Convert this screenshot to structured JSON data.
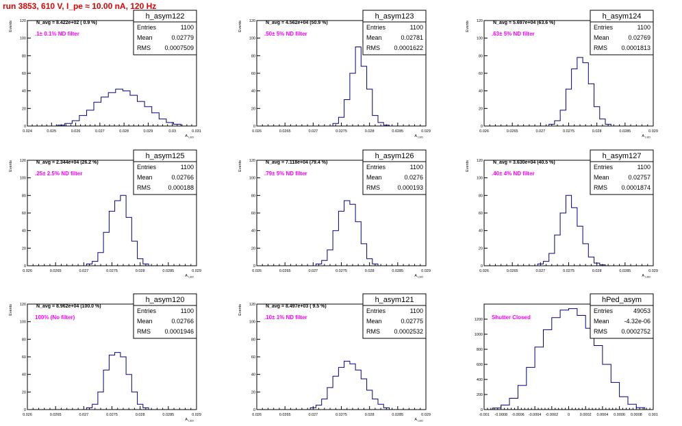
{
  "header": {
    "run_label": "run 3853,   610 V, I_pe ≈ 10.00 nA, 120 Hz",
    "title_color": "#e00000"
  },
  "colors": {
    "histogram": "#00007f",
    "annotation": "#ff00ff",
    "axes": "#000000"
  },
  "chart_data": [
    {
      "type": "histogram",
      "name": "h_asym122",
      "ylabel": "Events",
      "xlabel": "A_LED",
      "navg_text": "N_avg = 8.422e+02 ( 0.9 %)",
      "filter_text": ".1± 0.1% ND filter",
      "stats": {
        "entries": "1100",
        "mean": "0.02779",
        "rms": "0.0007509"
      },
      "xlim": [
        0.024,
        0.031
      ],
      "ylim": [
        0,
        120
      ],
      "xticks": [
        "0.024",
        "0.025",
        "0.026",
        "0.027",
        "0.028",
        "0.029",
        "0.03",
        "0.031"
      ],
      "yticks": [
        "0",
        "20",
        "40",
        "60",
        "80",
        "100",
        "120"
      ],
      "x": [
        0.0254,
        0.0257,
        0.026,
        0.0263,
        0.0266,
        0.0269,
        0.0272,
        0.0275,
        0.0278,
        0.0281,
        0.0284,
        0.0287,
        0.029,
        0.0293,
        0.0296,
        0.0299,
        0.0302
      ],
      "values": [
        1,
        3,
        6,
        12,
        18,
        27,
        33,
        38,
        42,
        40,
        35,
        28,
        22,
        15,
        8,
        4,
        2
      ]
    },
    {
      "type": "histogram",
      "name": "h_asym123",
      "ylabel": "Events",
      "xlabel": "A_LED",
      "navg_text": "N_avg = 4.562e+04 (50.9 %)",
      "filter_text": ".50± 5% ND filter",
      "stats": {
        "entries": "1100",
        "mean": "0.02781",
        "rms": "0.0001622"
      },
      "xlim": [
        0.026,
        0.029
      ],
      "ylim": [
        0,
        120
      ],
      "xticks": [
        "0.026",
        "0.0265",
        "0.027",
        "0.0275",
        "0.028",
        "0.0285",
        "0.029"
      ],
      "yticks": [
        "0",
        "20",
        "40",
        "60",
        "80",
        "100",
        "120"
      ],
      "x": [
        0.0274,
        0.0275,
        0.0276,
        0.0277,
        0.0278,
        0.0279,
        0.028,
        0.0281,
        0.0282,
        0.0283
      ],
      "values": [
        3,
        10,
        30,
        60,
        90,
        68,
        42,
        12,
        4,
        1
      ]
    },
    {
      "type": "histogram",
      "name": "h_asym124",
      "ylabel": "Events",
      "xlabel": "A_LED",
      "navg_text": "N_avg = 5.697e+04 (63.6 %)",
      "filter_text": ".63± 5% ND filter",
      "stats": {
        "entries": "1100",
        "mean": "0.02769",
        "rms": "0.0001813"
      },
      "xlim": [
        0.026,
        0.029
      ],
      "ylim": [
        0,
        120
      ],
      "xticks": [
        "0.026",
        "0.0265",
        "0.027",
        "0.0275",
        "0.028",
        "0.0285",
        "0.029"
      ],
      "yticks": [
        "0",
        "20",
        "40",
        "60",
        "80",
        "100",
        "120"
      ],
      "x": [
        0.0272,
        0.0273,
        0.0274,
        0.0275,
        0.0276,
        0.0277,
        0.0278,
        0.0279,
        0.028,
        0.0281,
        0.0282
      ],
      "values": [
        2,
        6,
        18,
        42,
        65,
        78,
        72,
        48,
        22,
        8,
        2
      ]
    },
    {
      "type": "histogram",
      "name": "h_asym125",
      "ylabel": "Events",
      "xlabel": "A_LED",
      "navg_text": "N_avg = 2.344e+04 (26.2 %)",
      "filter_text": ".25± 2.5% ND filter",
      "stats": {
        "entries": "1100",
        "mean": "0.02766",
        "rms": "0.000188"
      },
      "xlim": [
        0.026,
        0.029
      ],
      "ylim": [
        0,
        120
      ],
      "xticks": [
        "0.026",
        "0.0265",
        "0.027",
        "0.0275",
        "0.028",
        "0.0285",
        "0.029"
      ],
      "yticks": [
        "0",
        "20",
        "40",
        "60",
        "80",
        "100",
        "120"
      ],
      "x": [
        0.0271,
        0.0272,
        0.0273,
        0.0274,
        0.0275,
        0.0276,
        0.0277,
        0.0278,
        0.0279,
        0.028,
        0.0281
      ],
      "values": [
        2,
        5,
        15,
        38,
        62,
        74,
        80,
        55,
        28,
        8,
        2
      ]
    },
    {
      "type": "histogram",
      "name": "h_asym126",
      "ylabel": "Events",
      "xlabel": "A_LED",
      "navg_text": "N_avg = 7.118e+04 (79.4 %)",
      "filter_text": ".79± 5% ND filter",
      "stats": {
        "entries": "1100",
        "mean": "0.0276",
        "rms": "0.000193"
      },
      "xlim": [
        0.026,
        0.029
      ],
      "ylim": [
        0,
        120
      ],
      "xticks": [
        "0.026",
        "0.0265",
        "0.027",
        "0.0275",
        "0.028",
        "0.0285",
        "0.029"
      ],
      "yticks": [
        "0",
        "20",
        "40",
        "60",
        "80",
        "100",
        "120"
      ],
      "x": [
        0.0271,
        0.0272,
        0.0273,
        0.0274,
        0.0275,
        0.0276,
        0.0277,
        0.0278,
        0.0279,
        0.028,
        0.0281
      ],
      "values": [
        2,
        6,
        18,
        40,
        62,
        74,
        70,
        50,
        25,
        8,
        2
      ]
    },
    {
      "type": "histogram",
      "name": "h_asym127",
      "ylabel": "Events",
      "xlabel": "A_LED",
      "navg_text": "N_avg = 3.630e+04 (40.5 %)",
      "filter_text": ".40± 4% ND filter",
      "stats": {
        "entries": "1100",
        "mean": "0.02757",
        "rms": "0.0001874"
      },
      "xlim": [
        0.026,
        0.029
      ],
      "ylim": [
        0,
        120
      ],
      "xticks": [
        "0.026",
        "0.0265",
        "0.027",
        "0.0275",
        "0.028",
        "0.0285",
        "0.029"
      ],
      "yticks": [
        "0",
        "20",
        "40",
        "60",
        "80",
        "100",
        "120"
      ],
      "x": [
        0.027,
        0.0271,
        0.0272,
        0.0273,
        0.0274,
        0.0275,
        0.0276,
        0.0277,
        0.0278,
        0.0279,
        0.028,
        0.0281
      ],
      "values": [
        2,
        5,
        14,
        35,
        60,
        80,
        66,
        45,
        25,
        10,
        3,
        1
      ]
    },
    {
      "type": "histogram",
      "name": "h_asym120",
      "ylabel": "Events",
      "xlabel": "A_LED",
      "navg_text": "N_avg = 8.962e+04 (100.0 %)",
      "filter_text": "100% (No filter)",
      "stats": {
        "entries": "1100",
        "mean": "0.02766",
        "rms": "0.0001946"
      },
      "xlim": [
        0.026,
        0.029
      ],
      "ylim": [
        0,
        120
      ],
      "xticks": [
        "0.026",
        "0.0265",
        "0.027",
        "0.0275",
        "0.028",
        "0.0285",
        "0.029"
      ],
      "yticks": [
        "0",
        "20",
        "40",
        "60",
        "80",
        "100",
        "120"
      ],
      "x": [
        0.0271,
        0.0272,
        0.0273,
        0.0274,
        0.0275,
        0.0276,
        0.0277,
        0.0278,
        0.0279,
        0.028,
        0.0281
      ],
      "values": [
        2,
        6,
        20,
        45,
        62,
        65,
        60,
        40,
        20,
        6,
        2
      ]
    },
    {
      "type": "histogram",
      "name": "h_asym121",
      "ylabel": "Events",
      "xlabel": "A_LED",
      "navg_text": "N_avg = 8.497e+03 ( 9.5 %)",
      "filter_text": ".10± 1% ND filter",
      "stats": {
        "entries": "1100",
        "mean": "0.02775",
        "rms": "0.0002532"
      },
      "xlim": [
        0.026,
        0.029
      ],
      "ylim": [
        0,
        120
      ],
      "xticks": [
        "0.026",
        "0.0265",
        "0.027",
        "0.0275",
        "0.028",
        "0.0285",
        "0.029"
      ],
      "yticks": [
        "0",
        "20",
        "40",
        "60",
        "80",
        "100",
        "120"
      ],
      "x": [
        0.027,
        0.0271,
        0.0272,
        0.0273,
        0.0274,
        0.0275,
        0.0276,
        0.0277,
        0.0278,
        0.0279,
        0.028,
        0.0281,
        0.0282,
        0.0283
      ],
      "values": [
        2,
        5,
        12,
        25,
        38,
        48,
        55,
        52,
        45,
        35,
        22,
        12,
        6,
        2
      ]
    },
    {
      "type": "histogram",
      "name": "hPed_asym",
      "ylabel": "",
      "xlabel": "",
      "navg_text": "",
      "filter_text": "Shutter Closed",
      "stats": {
        "entries": "49053",
        "mean": "-4.32e-06",
        "rms": "0.0002752"
      },
      "xlim": [
        -0.001,
        0.001
      ],
      "ylim": [
        0,
        1400
      ],
      "xticks": [
        "-0.001",
        "-0.0008",
        "-0.0006",
        "-0.0004",
        "-0.0002",
        "0",
        "0.0002",
        "0.0004",
        "0.0006",
        "0.0008",
        "0.001"
      ],
      "yticks": [
        "0",
        "200",
        "400",
        "600",
        "800",
        "1000",
        "1200"
      ],
      "x": [
        -0.00085,
        -0.00075,
        -0.00065,
        -0.00055,
        -0.00045,
        -0.00035,
        -0.00025,
        -0.00015,
        -5e-05,
        5e-05,
        0.00015,
        0.00025,
        0.00035,
        0.00045,
        0.00055,
        0.00065,
        0.00075,
        0.00085
      ],
      "values": [
        20,
        60,
        150,
        320,
        560,
        830,
        1060,
        1220,
        1320,
        1340,
        1250,
        1080,
        850,
        600,
        360,
        170,
        70,
        25
      ]
    }
  ]
}
